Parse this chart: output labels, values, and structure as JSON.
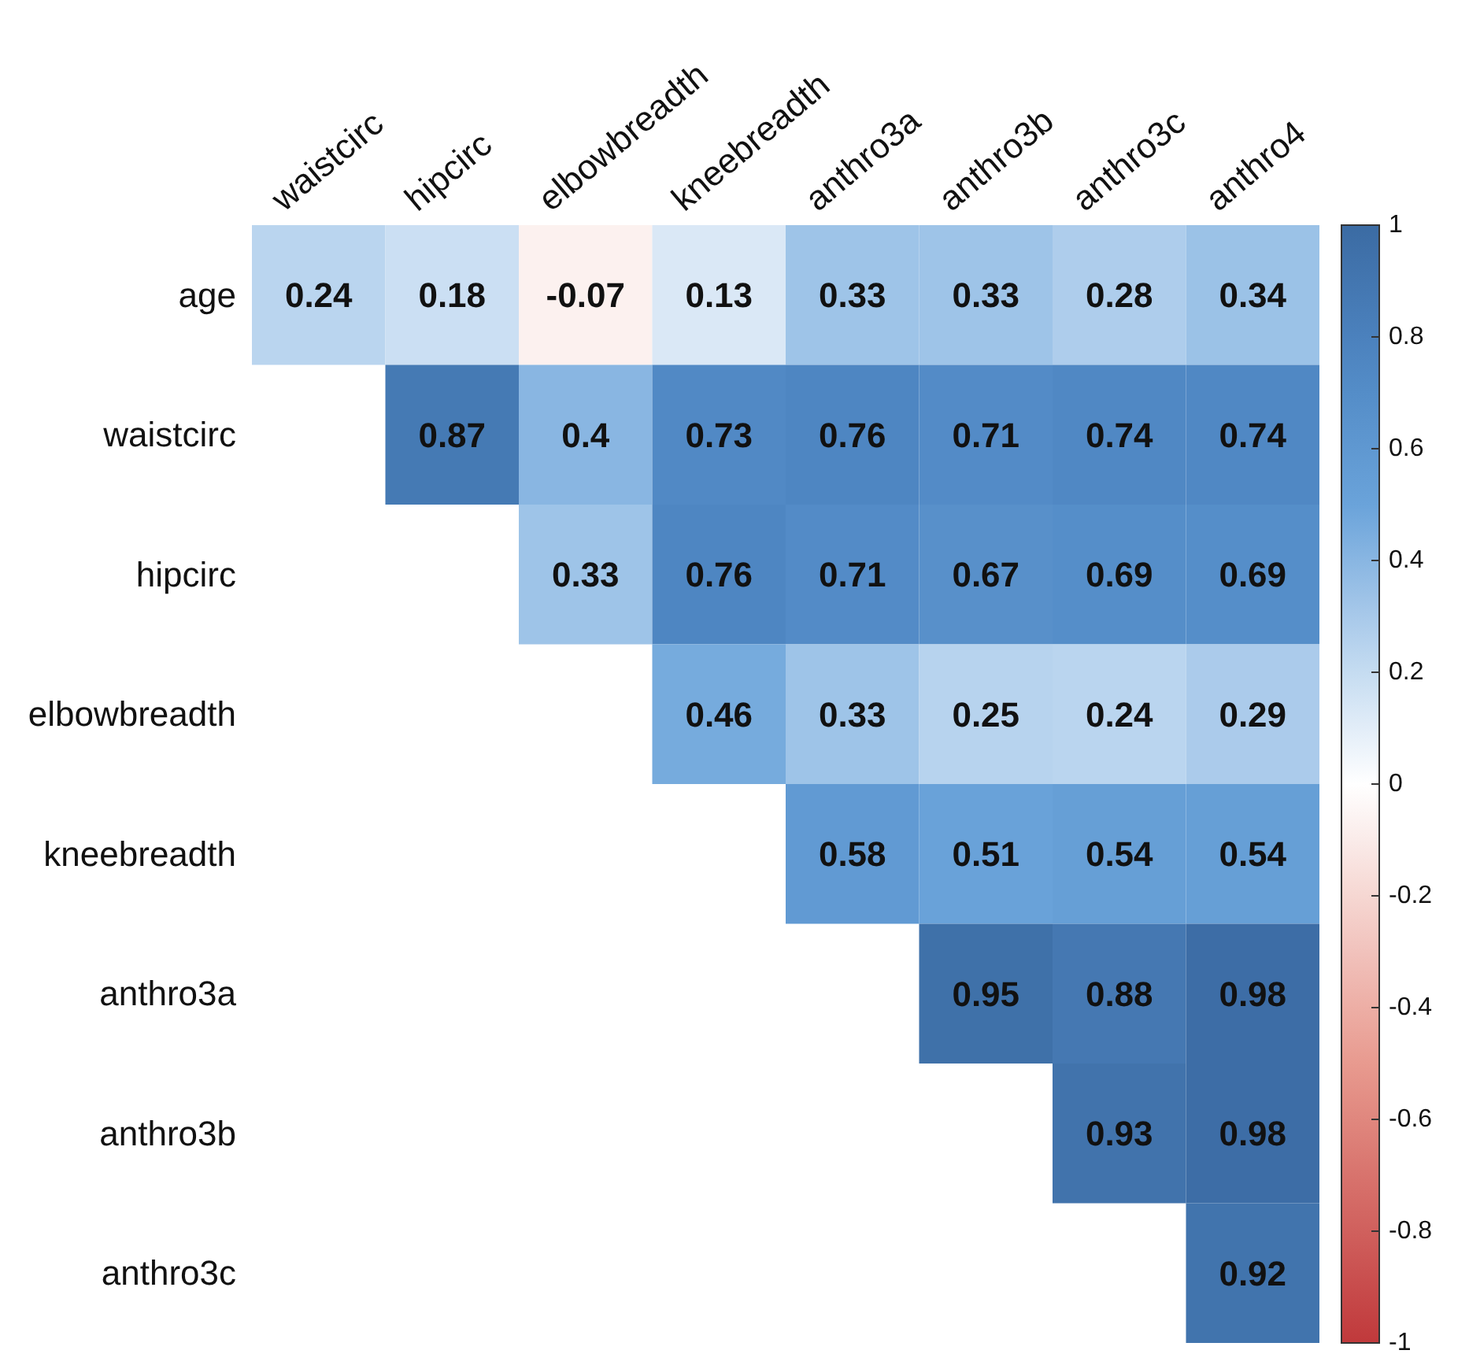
{
  "chart_data": {
    "type": "heatmap",
    "categories": [
      "waistcirc",
      "hipcirc",
      "elbowbreadth",
      "kneebreadth",
      "anthro3a",
      "anthro3b",
      "anthro3c",
      "anthro4"
    ],
    "y_categories": [
      "age",
      "waistcirc",
      "hipcirc",
      "elbowbreadth",
      "kneebreadth",
      "anthro3a",
      "anthro3b",
      "anthro3c"
    ],
    "cells": [
      [
        0.24,
        0.18,
        -0.07,
        0.13,
        0.33,
        0.33,
        0.28,
        0.34
      ],
      [
        null,
        0.87,
        0.4,
        0.73,
        0.76,
        0.71,
        0.74,
        0.74
      ],
      [
        null,
        null,
        0.33,
        0.76,
        0.71,
        0.67,
        0.69,
        0.69
      ],
      [
        null,
        null,
        null,
        0.46,
        0.33,
        0.25,
        0.24,
        0.29
      ],
      [
        null,
        null,
        null,
        null,
        0.58,
        0.51,
        0.54,
        0.54
      ],
      [
        null,
        null,
        null,
        null,
        null,
        0.95,
        0.88,
        0.98
      ],
      [
        null,
        null,
        null,
        null,
        null,
        null,
        0.93,
        0.98
      ],
      [
        null,
        null,
        null,
        null,
        null,
        null,
        null,
        0.92
      ]
    ],
    "data_labels": true,
    "clim": [
      -1,
      1
    ],
    "cticks": [
      -1,
      -0.8,
      -0.6,
      -0.4,
      -0.2,
      0,
      0.2,
      0.4,
      0.6,
      0.8,
      1
    ]
  }
}
